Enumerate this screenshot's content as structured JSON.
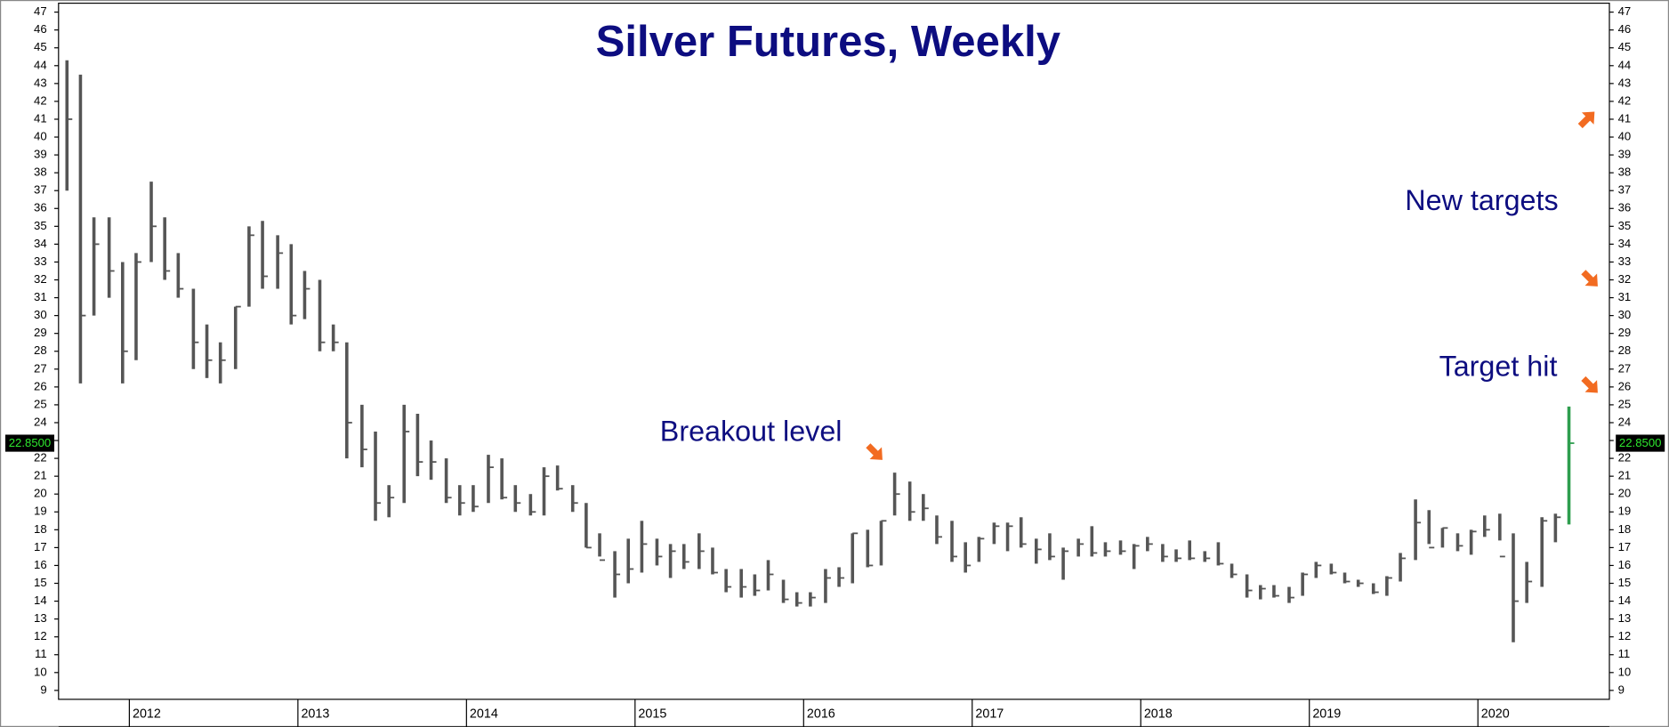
{
  "chart_data": {
    "type": "ohlc",
    "title": "Silver Futures, Weekly",
    "annotations": [
      "Breakout level",
      "New targets",
      "Target hit"
    ],
    "color": "#555555",
    "last_color": "#2e9e4e",
    "text_color": "#0d0d80",
    "last_price": {
      "value": 22.85,
      "label": "22.8500"
    },
    "xlim": [
      2011.58,
      2020.78
    ],
    "xticks": [
      2012,
      2013,
      2014,
      2015,
      2016,
      2017,
      2018,
      2019,
      2020
    ],
    "ylim": [
      8.5,
      47.5
    ],
    "yticks": [
      9,
      10,
      11,
      12,
      13,
      14,
      15,
      16,
      17,
      18,
      19,
      20,
      21,
      22,
      23,
      24,
      25,
      26,
      27,
      28,
      29,
      30,
      31,
      32,
      33,
      34,
      35,
      36,
      37,
      38,
      39,
      40,
      41,
      42,
      43,
      44,
      45,
      46,
      47
    ],
    "x": [
      2011.63,
      2011.71,
      2011.79,
      2011.88,
      2011.96,
      2012.04,
      2012.13,
      2012.21,
      2012.29,
      2012.38,
      2012.46,
      2012.54,
      2012.63,
      2012.71,
      2012.79,
      2012.88,
      2012.96,
      2013.04,
      2013.13,
      2013.21,
      2013.29,
      2013.38,
      2013.46,
      2013.54,
      2013.63,
      2013.71,
      2013.79,
      2013.88,
      2013.96,
      2014.04,
      2014.13,
      2014.21,
      2014.29,
      2014.38,
      2014.46,
      2014.54,
      2014.63,
      2014.71,
      2014.79,
      2014.88,
      2014.96,
      2015.04,
      2015.13,
      2015.21,
      2015.29,
      2015.38,
      2015.46,
      2015.54,
      2015.63,
      2015.71,
      2015.79,
      2015.88,
      2015.96,
      2016.04,
      2016.13,
      2016.21,
      2016.29,
      2016.38,
      2016.46,
      2016.54,
      2016.63,
      2016.71,
      2016.79,
      2016.88,
      2016.96,
      2017.04,
      2017.13,
      2017.21,
      2017.29,
      2017.38,
      2017.46,
      2017.54,
      2017.63,
      2017.71,
      2017.79,
      2017.88,
      2017.96,
      2018.04,
      2018.13,
      2018.21,
      2018.29,
      2018.38,
      2018.46,
      2018.54,
      2018.63,
      2018.71,
      2018.79,
      2018.88,
      2018.96,
      2019.04,
      2019.13,
      2019.21,
      2019.29,
      2019.38,
      2019.46,
      2019.54,
      2019.63,
      2019.71,
      2019.79,
      2019.88,
      2019.96,
      2020.04,
      2020.13,
      2020.21,
      2020.29,
      2020.38,
      2020.46,
      2020.54
    ],
    "high": [
      44.3,
      43.5,
      35.5,
      35.5,
      33,
      33.5,
      37.5,
      35.5,
      33.5,
      31.5,
      29.5,
      28.5,
      30.5,
      35,
      35.3,
      34.5,
      34,
      32.5,
      32,
      29.5,
      28.5,
      25,
      23.5,
      20.5,
      25,
      24.5,
      23,
      22,
      20.5,
      20.5,
      22.2,
      22,
      20.5,
      20,
      21.5,
      21.6,
      20.5,
      19.5,
      17.8,
      16.8,
      17.5,
      18.5,
      17.5,
      17.2,
      17.2,
      17.8,
      17,
      15.8,
      15.8,
      15.5,
      16.3,
      15.2,
      14.5,
      14.5,
      15.8,
      15.9,
      17.8,
      18,
      18.5,
      21.2,
      20.7,
      20,
      18.8,
      18.5,
      17.3,
      17.6,
      18.4,
      18.4,
      18.7,
      17.5,
      17.8,
      17,
      17.5,
      18.2,
      17.3,
      17.4,
      17.2,
      17.6,
      17.2,
      16.9,
      17.4,
      16.8,
      17.3,
      16.1,
      15.5,
      14.9,
      14.9,
      14.8,
      15.6,
      16.2,
      16.1,
      15.6,
      15.2,
      15,
      15.4,
      16.7,
      19.7,
      19.1,
      18.1,
      17.8,
      18,
      18.8,
      18.9,
      17.8,
      16.2,
      18.7,
      18.9,
      24.9
    ],
    "low": [
      37,
      26.2,
      30,
      31,
      26.2,
      27.5,
      33,
      32,
      31,
      27,
      26.5,
      26.2,
      27,
      30.5,
      31.5,
      31.5,
      29.5,
      29.8,
      28,
      28,
      22,
      21.5,
      18.5,
      18.7,
      19.5,
      21,
      20.8,
      19.5,
      18.8,
      19,
      19.5,
      19.7,
      19,
      18.8,
      18.8,
      20.2,
      19,
      17,
      16.5,
      14.2,
      15,
      15.6,
      16,
      15.3,
      15.8,
      15.8,
      15.5,
      14.5,
      14.2,
      14.3,
      14.6,
      13.9,
      13.7,
      13.7,
      13.9,
      14.8,
      15,
      15.9,
      16,
      18.8,
      18.5,
      18.5,
      17.2,
      16.2,
      15.6,
      16.2,
      17.2,
      16.8,
      17,
      16.1,
      16.3,
      15.2,
      16.5,
      16.5,
      16.5,
      16.6,
      15.8,
      16.8,
      16.2,
      16.2,
      16.3,
      16.2,
      16,
      15.3,
      14.2,
      14.1,
      14.2,
      13.9,
      14.3,
      15.3,
      15.5,
      15,
      14.8,
      14.4,
      14.3,
      15.1,
      16.3,
      17.2,
      17,
      16.8,
      16.6,
      17.6,
      17.4,
      11.7,
      13.9,
      14.8,
      17.3,
      18.3
    ],
    "close": [
      41,
      30,
      34,
      32.5,
      28,
      33,
      35,
      32.5,
      31.5,
      28.5,
      27.5,
      27.5,
      30.5,
      34.5,
      32.2,
      33.5,
      30,
      31.5,
      28.5,
      28.5,
      24,
      22.5,
      19.5,
      19.8,
      23.5,
      21.8,
      21.8,
      19.8,
      19.5,
      19.3,
      21.5,
      19.8,
      19.5,
      19,
      21,
      20.3,
      19.5,
      17,
      16.3,
      15.5,
      15.8,
      17.2,
      16.5,
      16.8,
      16.2,
      16.8,
      15.6,
      14.8,
      14.8,
      14.6,
      15.5,
      14.1,
      13.9,
      14.2,
      15.3,
      15.3,
      17.8,
      16,
      18.5,
      20,
      19,
      19.2,
      17.6,
      16.5,
      16,
      17.5,
      18.2,
      18.2,
      17.2,
      16.9,
      16.5,
      16.8,
      17.2,
      16.7,
      16.8,
      16.8,
      17.1,
      17.2,
      16.5,
      16.4,
      16.4,
      16.4,
      16.1,
      15.5,
      14.6,
      14.7,
      14.3,
      14.2,
      15.5,
      16,
      15.6,
      15.1,
      15,
      14.5,
      15.3,
      16.4,
      18.4,
      17,
      18.1,
      17.1,
      17.9,
      18,
      16.5,
      14,
      15.1,
      18.5,
      18.7,
      22.85
    ]
  }
}
